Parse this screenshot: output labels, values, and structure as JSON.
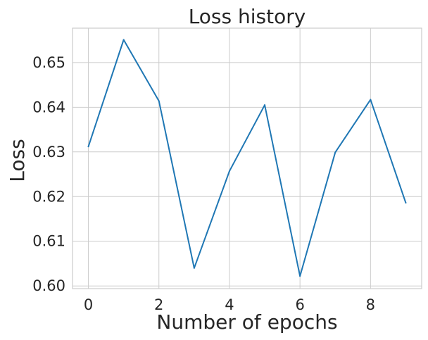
{
  "chart_data": {
    "type": "line",
    "title": "Loss history",
    "xlabel": "Number of epochs",
    "ylabel": "Loss",
    "xlim": [
      -0.45,
      9.45
    ],
    "ylim": [
      0.5994,
      0.6577
    ],
    "xticks": [
      0,
      2,
      4,
      6,
      8
    ],
    "yticks": [
      0.6,
      0.61,
      0.62,
      0.63,
      0.64,
      0.65
    ],
    "xtick_labels": [
      "0",
      "2",
      "4",
      "6",
      "8"
    ],
    "ytick_labels": [
      "0.60",
      "0.61",
      "0.62",
      "0.63",
      "0.64",
      "0.65"
    ],
    "grid": true,
    "series": [
      {
        "color": "#1f77b4",
        "x": [
          0,
          1,
          2,
          3,
          4,
          5,
          6,
          7,
          8,
          9
        ],
        "y": [
          0.6312,
          0.6551,
          0.6414,
          0.604,
          0.6257,
          0.6405,
          0.6022,
          0.6299,
          0.6417,
          0.6186
        ]
      }
    ]
  }
}
